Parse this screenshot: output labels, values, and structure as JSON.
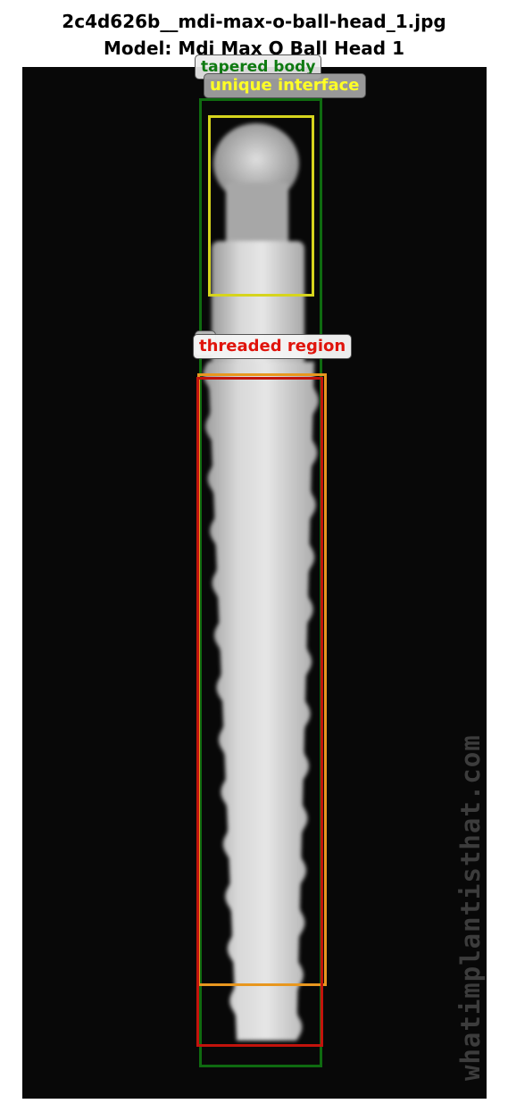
{
  "figure": {
    "title_line1": "2c4d626b__mdi-max-o-ball-head_1.jpg",
    "title_line2": "Model: Mdi Max O Ball Head 1"
  },
  "image": {
    "watermark": "whatimplantisthat.com",
    "background_color": "#080808"
  },
  "annotations": [
    {
      "label": "tapered body",
      "color": "#0f6b10"
    },
    {
      "label": "unique interface",
      "color": "#d6d41d"
    },
    {
      "label": "s",
      "color": "#e8971f"
    },
    {
      "label": "threaded region",
      "color": "#c2130c"
    }
  ]
}
